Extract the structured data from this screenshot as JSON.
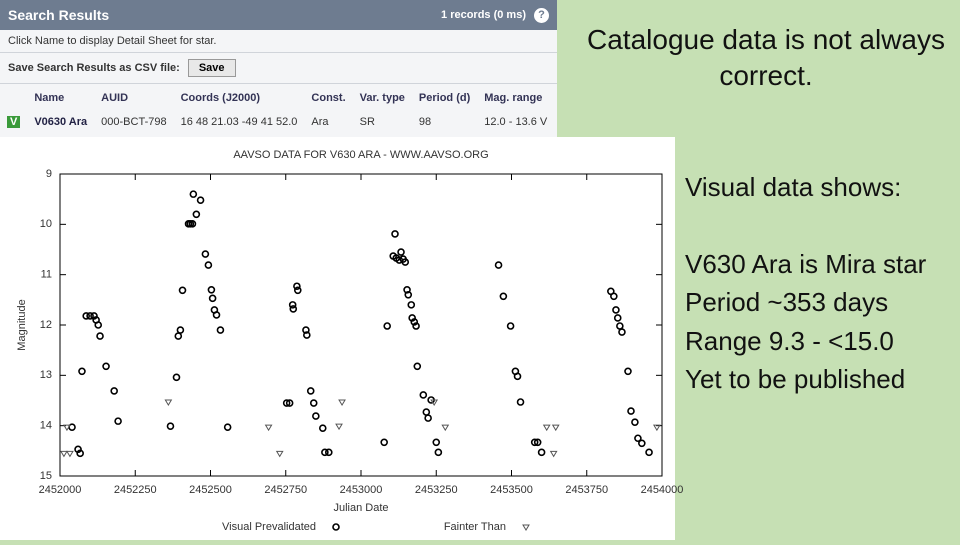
{
  "search_panel": {
    "title": "Search Results",
    "records": "1 records (0 ms)",
    "help": "?",
    "hint": "Click Name to display Detail Sheet for star.",
    "save_label": "Save Search Results as CSV file:",
    "save_button": "Save"
  },
  "table": {
    "columns": [
      "Name",
      "AUID",
      "Coords (J2000)",
      "Const.",
      "Var. type",
      "Period (d)",
      "Mag. range"
    ],
    "rows": [
      {
        "flag": "V",
        "cells": [
          "V0630 Ara",
          "000-BCT-798",
          "16 48 21.03 -49 41 52.0",
          "Ara",
          "SR",
          "98",
          "12.0 - 13.6 V"
        ]
      }
    ]
  },
  "notes": {
    "heading": "Catalogue data is not always correct.",
    "lines": [
      "Visual data shows:",
      "V630 Ara is Mira star",
      "Period ~353 days",
      "Range 9.3 - <15.0",
      "Yet to be published"
    ]
  },
  "chart_data": {
    "type": "scatter",
    "title": "AAVSO DATA FOR V630 ARA - WWW.AAVSO.ORG",
    "x_label": "Julian Date",
    "y_label": "Magnitude",
    "xlim": [
      2452000,
      2454000
    ],
    "xticks": [
      2452000,
      2452250,
      2452500,
      2452750,
      2453000,
      2453250,
      2453500,
      2453750,
      2454000
    ],
    "ylim": [
      15,
      9
    ],
    "yticks": [
      9,
      10,
      11,
      12,
      13,
      14,
      15
    ],
    "grid": false,
    "series": [
      {
        "name": "Visual Prevalidated",
        "marker": "circle",
        "color": "#000000",
        "x": [
          2452040,
          2452060,
          2452067,
          2452073,
          2452087,
          2452100,
          2452113,
          2452120,
          2452127,
          2452133,
          2452153,
          2452180,
          2452193,
          2452367,
          2452387,
          2452393,
          2452400,
          2452407,
          2452427,
          2452433,
          2452440,
          2452443,
          2452453,
          2452467,
          2452483,
          2452493,
          2452503,
          2452507,
          2452513,
          2452520,
          2452533,
          2452557,
          2452753,
          2452763,
          2452773,
          2452775,
          2452787,
          2452790,
          2452817,
          2452820,
          2452833,
          2452843,
          2452850,
          2452873,
          2452880,
          2452893,
          2453077,
          2453087,
          2453107,
          2453113,
          2453117,
          2453127,
          2453133,
          2453140,
          2453147,
          2453153,
          2453157,
          2453167,
          2453170,
          2453177,
          2453183,
          2453187,
          2453207,
          2453217,
          2453223,
          2453233,
          2453250,
          2453257,
          2453457,
          2453473,
          2453497,
          2453513,
          2453520,
          2453530,
          2453577,
          2453587,
          2453600,
          2453830,
          2453840,
          2453847,
          2453853,
          2453860,
          2453867,
          2453887,
          2453897,
          2453910,
          2453920,
          2453933,
          2453957
        ],
        "values": [
          14.03,
          14.47,
          14.55,
          12.92,
          11.82,
          11.82,
          11.82,
          11.9,
          12.0,
          12.22,
          12.82,
          13.31,
          13.91,
          14.01,
          13.04,
          12.22,
          12.1,
          11.31,
          9.99,
          9.99,
          9.99,
          9.4,
          9.8,
          9.52,
          10.59,
          10.81,
          11.3,
          11.47,
          11.7,
          11.8,
          12.1,
          14.03,
          13.55,
          13.55,
          11.6,
          11.68,
          11.23,
          11.31,
          12.1,
          12.2,
          13.31,
          13.55,
          13.81,
          14.05,
          14.53,
          14.53,
          14.33,
          12.02,
          10.63,
          10.19,
          10.67,
          10.71,
          10.55,
          10.69,
          10.75,
          11.3,
          11.4,
          11.6,
          11.86,
          11.94,
          12.02,
          12.82,
          13.39,
          13.73,
          13.85,
          13.49,
          14.33,
          14.53,
          10.81,
          11.43,
          12.02,
          12.92,
          13.02,
          13.53,
          14.33,
          14.33,
          14.53,
          11.33,
          11.43,
          11.7,
          11.86,
          12.02,
          12.14,
          12.92,
          13.71,
          13.93,
          14.25,
          14.35,
          14.53
        ]
      },
      {
        "name": "Fainter Than",
        "marker": "triangle",
        "color": "#555555",
        "x": [
          2452013,
          2452023,
          2452033,
          2452360,
          2452693,
          2452730,
          2452927,
          2452937,
          2453243,
          2453280,
          2453617,
          2453640,
          2453647,
          2453983
        ],
        "values": [
          14.55,
          14.03,
          14.55,
          13.53,
          14.03,
          14.55,
          14.01,
          13.53,
          13.53,
          14.03,
          14.03,
          14.55,
          14.03,
          14.03
        ]
      }
    ]
  }
}
